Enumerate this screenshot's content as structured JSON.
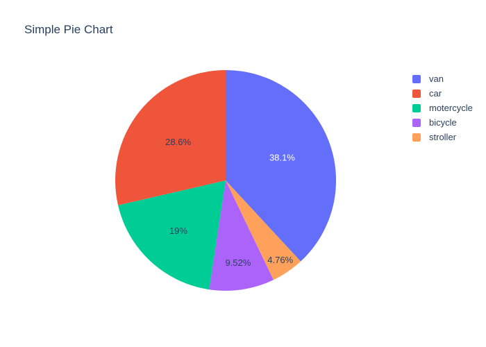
{
  "title": "Simple Pie Chart",
  "colors": {
    "background": "#ffffff",
    "title_text": "#2a3f5f",
    "legend_text": "#2a3f5f"
  },
  "chart_data": {
    "type": "pie",
    "title": "Simple Pie Chart",
    "labels": [
      "van",
      "car",
      "motercycle",
      "bicycle",
      "stroller"
    ],
    "values": [
      38.1,
      28.6,
      19.0,
      9.52,
      4.76
    ],
    "percent_labels": [
      "38.1%",
      "28.6%",
      "19%",
      "9.52%",
      "4.76%"
    ],
    "slice_colors": [
      "#636efa",
      "#ef553b",
      "#00cc96",
      "#ab63fa",
      "#ffa15a"
    ],
    "percent_label_colors": [
      "#ffffff",
      "#2a3f5f",
      "#2a3f5f",
      "#2a3f5f",
      "#2a3f5f"
    ],
    "legend_position": "right",
    "legend_entries": [
      "van",
      "car",
      "motercycle",
      "bicycle",
      "stroller"
    ],
    "start_angle_deg": 0,
    "direction_note": "largest slice clockwise from 12 o'clock, remaining counterclockwise",
    "clockwise_order": [
      0,
      4,
      3,
      2,
      1
    ],
    "label_radius_frac": [
      0.55,
      0.55,
      0.63,
      0.76,
      0.88
    ]
  }
}
